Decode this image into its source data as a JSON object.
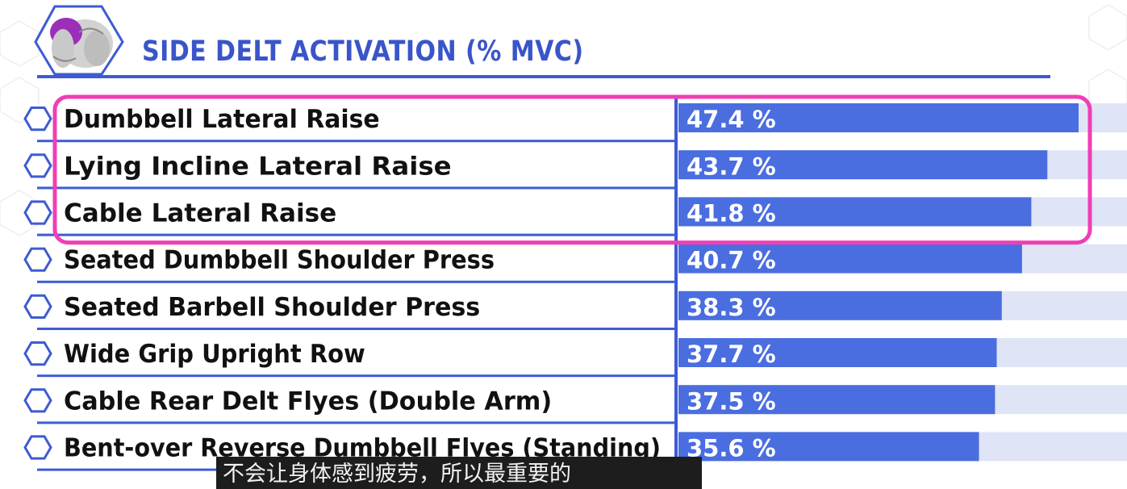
{
  "chart_data": {
    "type": "bar",
    "orientation": "horizontal",
    "title": "SIDE DELT ACTIVATION (% MVC)",
    "categories": [
      "Dumbbell Lateral Raise",
      "Lying Incline Lateral Raise",
      "Cable Lateral Raise",
      "Seated Dumbbell Shoulder Press",
      "Seated Barbell Shoulder Press",
      "Wide Grip Upright Row",
      "Cable Rear Delt Flyes (Double Arm)",
      "Bent-over Reverse Dumbbell Flyes (Standing)"
    ],
    "values": [
      47.4,
      43.7,
      41.8,
      40.7,
      38.3,
      37.7,
      37.5,
      35.6
    ],
    "value_labels": [
      "47.4 %",
      "43.7 %",
      "41.8 %",
      "40.7 %",
      "38.3 %",
      "37.7 %",
      "37.5 %",
      "35.6 %"
    ],
    "highlighted_rows": [
      0,
      1,
      2
    ],
    "xlim": [
      0,
      50
    ],
    "grid": false,
    "legend": "none",
    "colors": {
      "bar": "#4a6ee0",
      "bar_track": "#dfe4f6",
      "accent": "#3d5bd4",
      "title": "#3a55c9",
      "highlight": "#ef3fb5",
      "label": "#111111",
      "value_text": "#ffffff"
    }
  },
  "icons": {
    "logo": "shoulder-muscle-icon",
    "row_marker": "hexagon-icon"
  },
  "caption": "不会让身体感到疲劳，所以最重要的"
}
